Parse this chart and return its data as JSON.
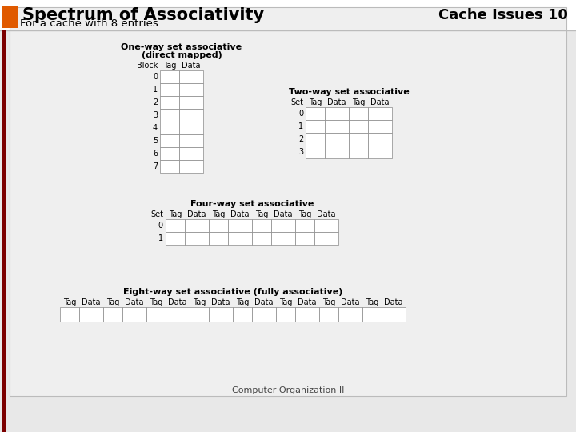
{
  "title": "Spectrum of Associativity",
  "subtitle": "Cache Issues 10",
  "subtitle2": "For a cache with 8 entries",
  "footer": "Computer Organization II",
  "bg_color": "#e8e8e8",
  "content_bg": "#efefef",
  "header_bg": "#ffffff",
  "orange_rect": "#e05a00",
  "dark_red_bar": "#7b0000",
  "text_color": "#000000",
  "cell_color": "#ffffff",
  "cell_edge": "#888888"
}
